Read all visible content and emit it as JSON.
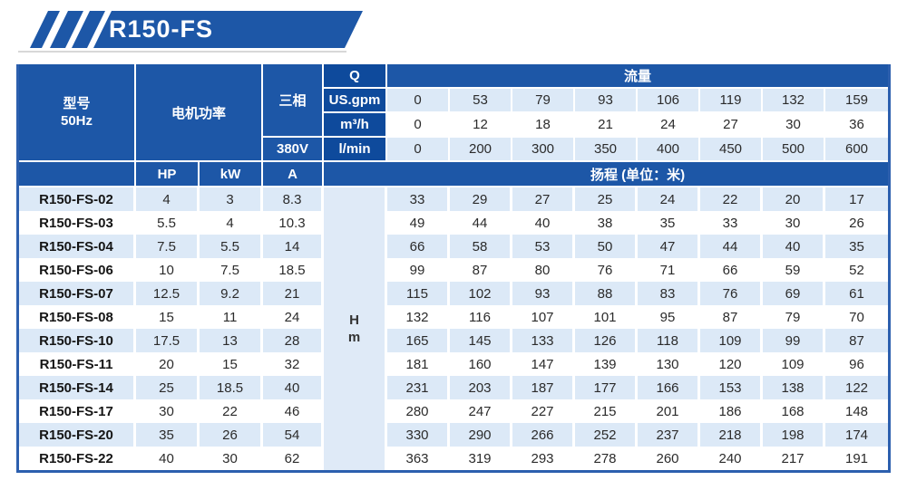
{
  "badge": {
    "label": "R150-FS"
  },
  "colors": {
    "header_blue": "#1d57a7",
    "unit_blue": "#0e4a9c",
    "stripe_blue": "#dce9f7",
    "outer_border": "#2c5fae",
    "badge_underline": "#d8d8d8"
  },
  "table": {
    "header": {
      "model_line1": "型号",
      "model_line2": "50Hz",
      "power": "电机功率",
      "phase": "三相",
      "voltage": "380V",
      "q_label": "Q",
      "flow_title": "流量",
      "unit_usgpm": "US.gpm",
      "unit_m3h": "m³/h",
      "unit_lmin": "l/min",
      "hp": "HP",
      "kw": "kW",
      "a": "A",
      "head_title": "扬程 (单位：米)",
      "head_unit_line1": "H",
      "head_unit_line2": "m"
    },
    "flow_values": {
      "usgpm": [
        "0",
        "53",
        "79",
        "93",
        "106",
        "119",
        "132",
        "159"
      ],
      "m3h": [
        "0",
        "12",
        "18",
        "21",
        "24",
        "27",
        "30",
        "36"
      ],
      "lmin": [
        "0",
        "200",
        "300",
        "350",
        "400",
        "450",
        "500",
        "600"
      ]
    },
    "rows": [
      {
        "model": "R150-FS-02",
        "hp": "4",
        "kw": "3",
        "a": "8.3",
        "head": [
          "33",
          "29",
          "27",
          "25",
          "24",
          "22",
          "20",
          "17"
        ]
      },
      {
        "model": "R150-FS-03",
        "hp": "5.5",
        "kw": "4",
        "a": "10.3",
        "head": [
          "49",
          "44",
          "40",
          "38",
          "35",
          "33",
          "30",
          "26"
        ]
      },
      {
        "model": "R150-FS-04",
        "hp": "7.5",
        "kw": "5.5",
        "a": "14",
        "head": [
          "66",
          "58",
          "53",
          "50",
          "47",
          "44",
          "40",
          "35"
        ]
      },
      {
        "model": "R150-FS-06",
        "hp": "10",
        "kw": "7.5",
        "a": "18.5",
        "head": [
          "99",
          "87",
          "80",
          "76",
          "71",
          "66",
          "59",
          "52"
        ]
      },
      {
        "model": "R150-FS-07",
        "hp": "12.5",
        "kw": "9.2",
        "a": "21",
        "head": [
          "115",
          "102",
          "93",
          "88",
          "83",
          "76",
          "69",
          "61"
        ]
      },
      {
        "model": "R150-FS-08",
        "hp": "15",
        "kw": "11",
        "a": "24",
        "head": [
          "132",
          "116",
          "107",
          "101",
          "95",
          "87",
          "79",
          "70"
        ]
      },
      {
        "model": "R150-FS-10",
        "hp": "17.5",
        "kw": "13",
        "a": "28",
        "head": [
          "165",
          "145",
          "133",
          "126",
          "118",
          "109",
          "99",
          "87"
        ]
      },
      {
        "model": "R150-FS-11",
        "hp": "20",
        "kw": "15",
        "a": "32",
        "head": [
          "181",
          "160",
          "147",
          "139",
          "130",
          "120",
          "109",
          "96"
        ]
      },
      {
        "model": "R150-FS-14",
        "hp": "25",
        "kw": "18.5",
        "a": "40",
        "head": [
          "231",
          "203",
          "187",
          "177",
          "166",
          "153",
          "138",
          "122"
        ]
      },
      {
        "model": "R150-FS-17",
        "hp": "30",
        "kw": "22",
        "a": "46",
        "head": [
          "280",
          "247",
          "227",
          "215",
          "201",
          "186",
          "168",
          "148"
        ]
      },
      {
        "model": "R150-FS-20",
        "hp": "35",
        "kw": "26",
        "a": "54",
        "head": [
          "330",
          "290",
          "266",
          "252",
          "237",
          "218",
          "198",
          "174"
        ]
      },
      {
        "model": "R150-FS-22",
        "hp": "40",
        "kw": "30",
        "a": "62",
        "head": [
          "363",
          "319",
          "293",
          "278",
          "260",
          "240",
          "217",
          "191"
        ]
      }
    ]
  }
}
